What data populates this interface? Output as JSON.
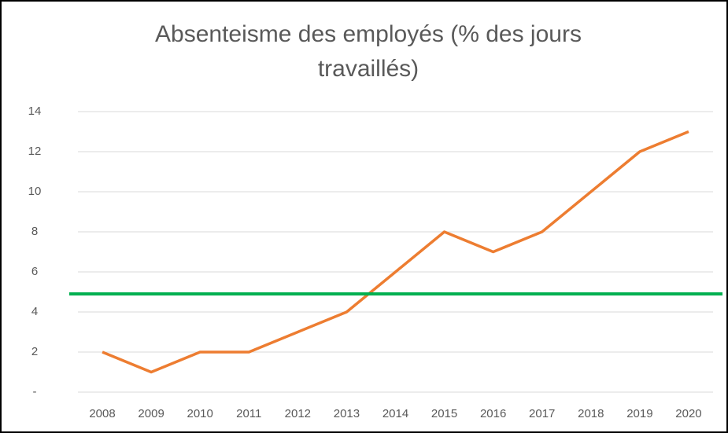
{
  "chart_data": {
    "type": "line",
    "title": "Absenteisme des employés (% des jours travaillés)",
    "categories": [
      "2008",
      "2009",
      "2010",
      "2011",
      "2012",
      "2013",
      "2014",
      "2015",
      "2016",
      "2017",
      "2018",
      "2019",
      "2020"
    ],
    "series": [
      {
        "name": "Absenteisme",
        "color": "#ed7d31",
        "values": [
          2,
          1,
          2,
          2,
          3,
          4,
          6,
          8,
          7,
          8,
          10,
          12,
          13
        ]
      }
    ],
    "reference_line": {
      "value": 4.9,
      "color": "#00b050"
    },
    "ylim": [
      0,
      14
    ],
    "yticks": [
      {
        "value": 0,
        "label": "-"
      },
      2,
      4,
      6,
      8,
      10,
      12,
      14
    ],
    "grid": true
  }
}
